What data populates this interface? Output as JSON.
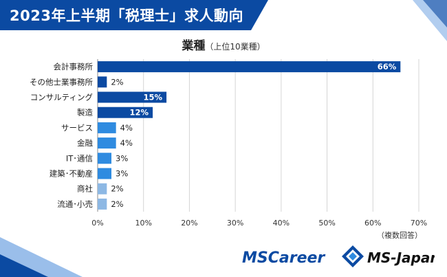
{
  "header": {
    "title": "2023年上半期「税理士」求人動向",
    "bg_color": "#0b4aa2"
  },
  "chart_data": {
    "type": "bar",
    "orientation": "horizontal",
    "title": "業種",
    "subtitle": "（上位10業種）",
    "categories": [
      "会計事務所",
      "その他士業事務所",
      "コンサルティング",
      "製造",
      "サービス",
      "金融",
      "IT･通信",
      "建築･不動産",
      "商社",
      "流通･小売"
    ],
    "values": [
      66,
      2,
      15,
      12,
      4,
      4,
      3,
      3,
      2,
      2
    ],
    "value_labels": [
      "66%",
      "2%",
      "15%",
      "12%",
      "4%",
      "4%",
      "3%",
      "3%",
      "2%",
      "2%"
    ],
    "bar_colors": [
      "#0b4aa2",
      "#0b4aa2",
      "#0b4aa2",
      "#0b4aa2",
      "#2f8be0",
      "#2f8be0",
      "#2f8be0",
      "#2f8be0",
      "#8db8e4",
      "#8db8e4"
    ],
    "xlim": [
      0,
      70
    ],
    "xticks": [
      "0%",
      "10%",
      "20%",
      "30%",
      "40%",
      "50%",
      "60%",
      "70%"
    ],
    "grid": true,
    "note": "（複数回答）"
  },
  "logos": {
    "left": "MSCareer",
    "right": "MS-Japan",
    "left_color": "#0b4aa2",
    "right_color": "#111111"
  }
}
